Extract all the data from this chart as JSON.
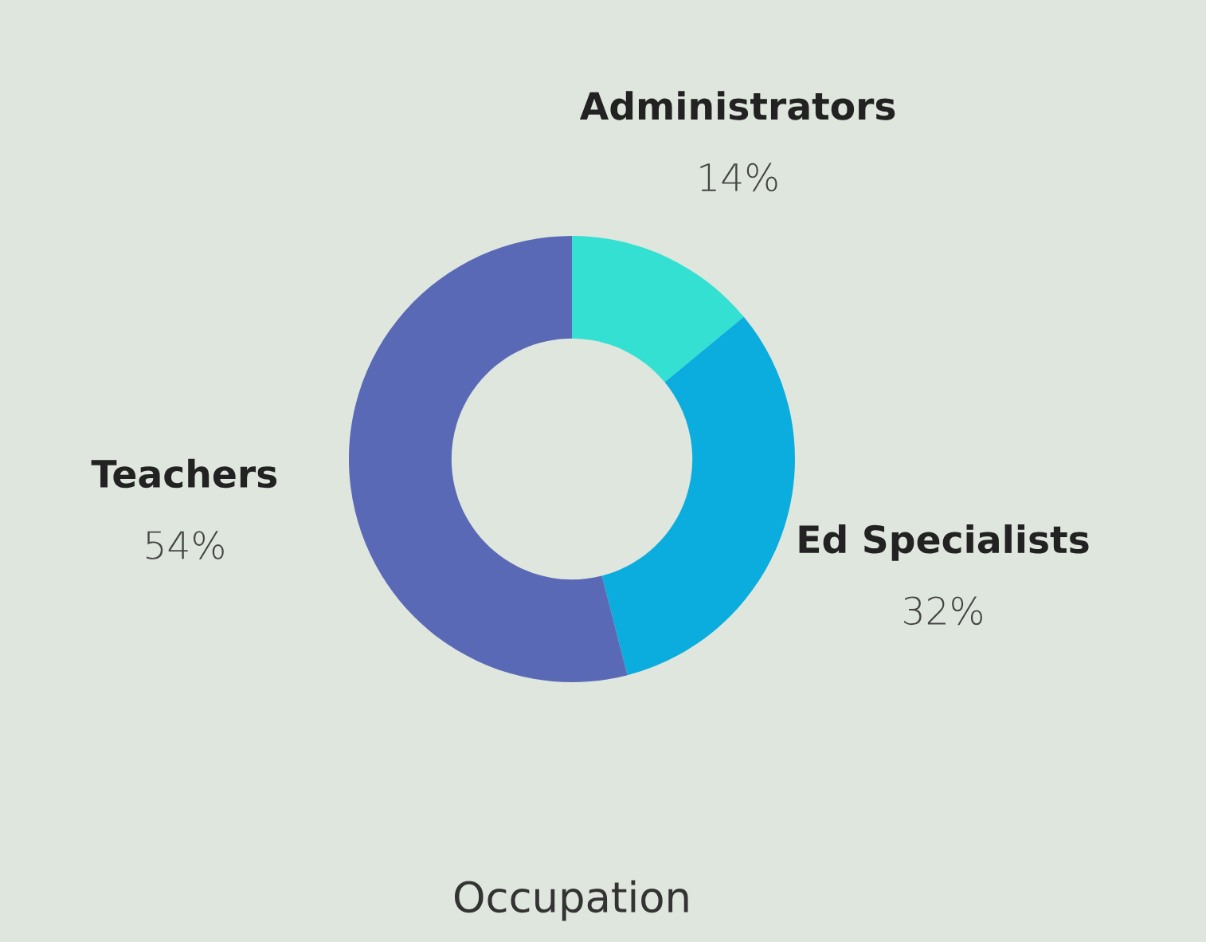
{
  "chart_data": {
    "type": "donut",
    "title": "Occupation",
    "categories": [
      "Administrators",
      "Ed Specialists",
      "Teachers"
    ],
    "values": [
      14,
      32,
      54
    ],
    "colors": [
      "#33e0d2",
      "#0badde",
      "#5a69b6"
    ],
    "value_labels": [
      "14%",
      "32%",
      "54%"
    ],
    "legend": false
  }
}
